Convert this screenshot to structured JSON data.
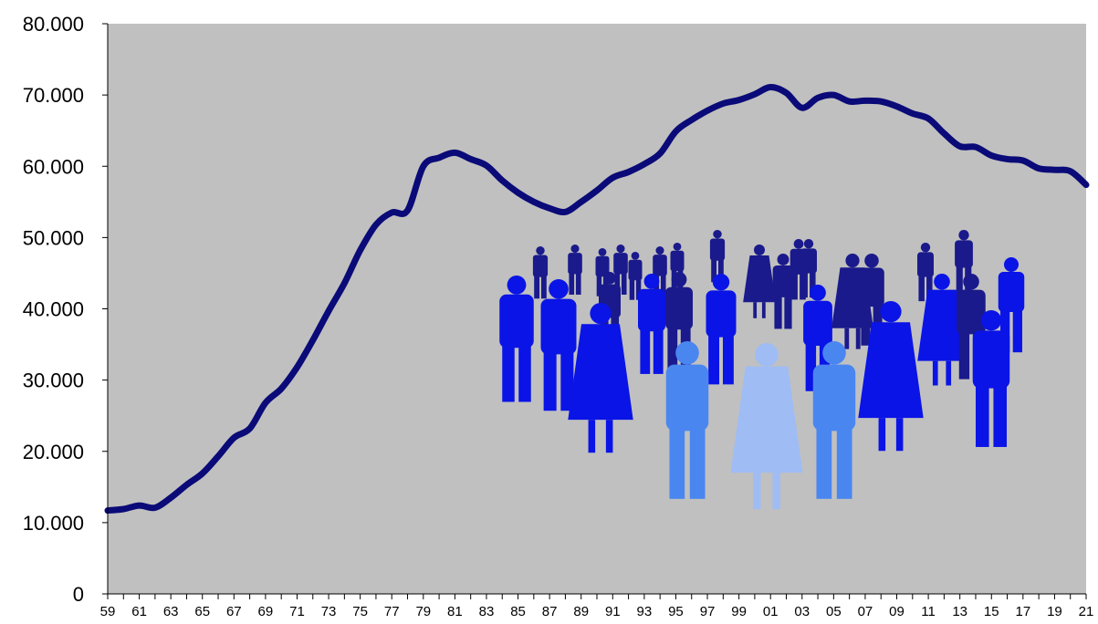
{
  "chart_data": {
    "type": "line",
    "title": "",
    "xlabel": "",
    "ylabel": "",
    "grid": false,
    "legend": "none",
    "colors": {
      "plot_background": "#c0c0c0",
      "line": "#0a0a78",
      "people_dark": "#1a1a8c",
      "people_mid": "#0a14e6",
      "people_light": "#4a86f0",
      "people_pale": "#9fbcf5"
    },
    "illustration": "people-crowd",
    "xlim": [
      1959,
      2021
    ],
    "ylim": [
      0,
      80000
    ],
    "y_ticks": [
      0,
      10000,
      20000,
      30000,
      40000,
      50000,
      60000,
      70000,
      80000
    ],
    "y_tick_labels": [
      "0",
      "10.000",
      "20.000",
      "30.000",
      "40.000",
      "50.000",
      "60.000",
      "70.000",
      "80.000"
    ],
    "x_tick_labels": [
      "59",
      "61",
      "63",
      "65",
      "67",
      "69",
      "71",
      "73",
      "75",
      "77",
      "79",
      "81",
      "83",
      "85",
      "87",
      "89",
      "91",
      "93",
      "95",
      "97",
      "99",
      "01",
      "03",
      "05",
      "07",
      "09",
      "11",
      "13",
      "15",
      "17",
      "19",
      "21"
    ],
    "x": [
      1959,
      1960,
      1961,
      1962,
      1963,
      1964,
      1965,
      1966,
      1967,
      1968,
      1969,
      1970,
      1971,
      1972,
      1973,
      1974,
      1975,
      1976,
      1977,
      1978,
      1979,
      1980,
      1981,
      1982,
      1983,
      1984,
      1985,
      1986,
      1987,
      1988,
      1989,
      1990,
      1991,
      1992,
      1993,
      1994,
      1995,
      1996,
      1997,
      1998,
      1999,
      2000,
      2001,
      2002,
      2003,
      2004,
      2005,
      2006,
      2007,
      2008,
      2009,
      2010,
      2011,
      2012,
      2013,
      2014,
      2015,
      2016,
      2017,
      2018,
      2019,
      2020,
      2021
    ],
    "series": [
      {
        "values": [
          11700,
          11900,
          12400,
          12100,
          13500,
          15300,
          16900,
          19300,
          21900,
          23200,
          26800,
          28800,
          31800,
          35600,
          39700,
          43600,
          48200,
          51800,
          53500,
          53800,
          60000,
          61200,
          61900,
          61000,
          60100,
          58000,
          56300,
          55000,
          54100,
          53600,
          55000,
          56600,
          58400,
          59200,
          60300,
          61800,
          64900,
          66500,
          67800,
          68800,
          69300,
          70100,
          71100,
          70300,
          68200,
          69600,
          70000,
          69100,
          69200,
          69100,
          68400,
          67400,
          66700,
          64600,
          62800,
          62700,
          61500,
          61000,
          60800,
          59700,
          59500,
          59300,
          57400
        ]
      }
    ]
  }
}
